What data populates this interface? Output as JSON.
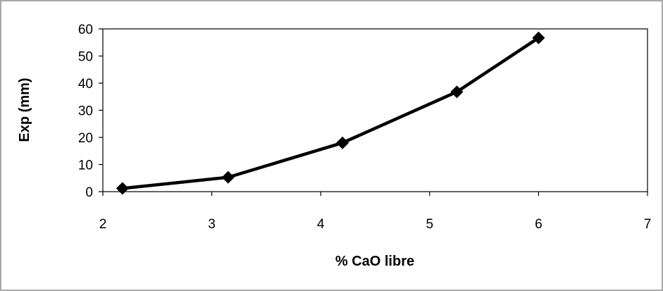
{
  "chart_data": {
    "type": "line",
    "title": "",
    "xlabel": "% CaO libre",
    "ylabel": "Exp (mm)",
    "xlim": [
      2,
      7
    ],
    "ylim": [
      0,
      60
    ],
    "xticks": [
      2,
      3,
      4,
      5,
      6,
      7
    ],
    "yticks": [
      0,
      10,
      20,
      30,
      40,
      50,
      60
    ],
    "grid": false,
    "legend": "none",
    "series": [
      {
        "x": [
          2.18,
          3.15,
          4.2,
          5.25,
          6.0
        ],
        "y": [
          1.2,
          5.3,
          18.0,
          36.8,
          56.7
        ],
        "color": "#000000",
        "marker": "diamond"
      }
    ]
  }
}
